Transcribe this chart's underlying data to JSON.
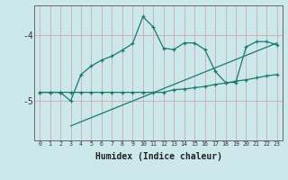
{
  "xlabel": "Humidex (Indice chaleur)",
  "ylabel": "",
  "background_color": "#cce8eb",
  "line_color": "#1a7a6e",
  "xlim": [
    -0.5,
    23.5
  ],
  "ylim": [
    -5.6,
    -3.55
  ],
  "yticks": [
    -5,
    -4
  ],
  "xticks": [
    0,
    1,
    2,
    3,
    4,
    5,
    6,
    7,
    8,
    9,
    10,
    11,
    12,
    13,
    14,
    15,
    16,
    17,
    18,
    19,
    20,
    21,
    22,
    23
  ],
  "line1_x": [
    0,
    1,
    2,
    3,
    4,
    5,
    6,
    7,
    8,
    9,
    10,
    11,
    12,
    13,
    14,
    15,
    16,
    17,
    18,
    19,
    20,
    21,
    22,
    23
  ],
  "line1_y": [
    -4.87,
    -4.87,
    -4.87,
    -5.0,
    -4.6,
    -4.47,
    -4.38,
    -4.32,
    -4.23,
    -4.13,
    -3.72,
    -3.88,
    -4.2,
    -4.22,
    -4.12,
    -4.12,
    -4.22,
    -4.55,
    -4.72,
    -4.72,
    -4.18,
    -4.1,
    -4.1,
    -4.15
  ],
  "line2_x": [
    0,
    1,
    2,
    3,
    4,
    5,
    6,
    7,
    8,
    9,
    10,
    11,
    12,
    13,
    14,
    15,
    16,
    17,
    18,
    19,
    20,
    21,
    22,
    23
  ],
  "line2_y": [
    -4.87,
    -4.87,
    -4.87,
    -4.87,
    -4.87,
    -4.87,
    -4.87,
    -4.87,
    -4.87,
    -4.87,
    -4.87,
    -4.87,
    -4.87,
    -4.83,
    -4.82,
    -4.8,
    -4.78,
    -4.75,
    -4.73,
    -4.7,
    -4.68,
    -4.65,
    -4.62,
    -4.6
  ],
  "line3_x": [
    3,
    23
  ],
  "line3_y": [
    -5.38,
    -4.12
  ]
}
